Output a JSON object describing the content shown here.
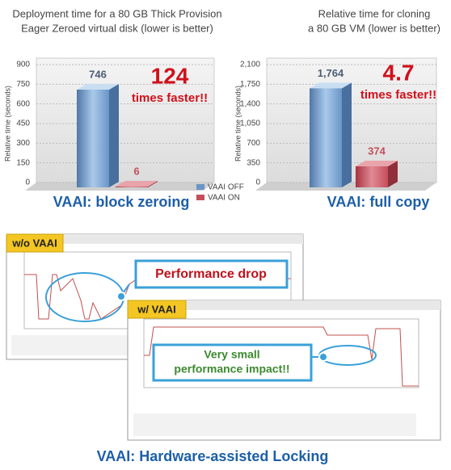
{
  "chart_data": [
    {
      "type": "bar",
      "title": [
        "Deployment time for a 80 GB Thick Provision",
        "Eager Zeroed virtual disk (lower is better)"
      ],
      "ylabel": "Relative time (seconds)",
      "values": [
        746,
        6
      ],
      "ylim": [
        0,
        900
      ],
      "yticks": [
        0,
        150,
        300,
        450,
        600,
        750,
        900
      ],
      "annotation": [
        "124",
        "times faster!!"
      ],
      "caption": "VAAI: block zeroing"
    },
    {
      "type": "bar",
      "title": [
        "Relative time for cloning",
        "a 80 GB VM (lower is better)"
      ],
      "ylabel": "Relative time (seconds)",
      "values": [
        1764,
        374
      ],
      "value_labels": [
        "1,764",
        "374"
      ],
      "ylim": [
        0,
        2100
      ],
      "yticks": [
        0,
        350,
        700,
        {
          "value": 1050,
          "label": "1,050"
        },
        {
          "value": 1400,
          "label": "1,400"
        },
        {
          "value": 1750,
          "label": "1,750"
        },
        {
          "value": 2100,
          "label": "2,100"
        }
      ],
      "annotation": [
        "4.7",
        "times faster!!"
      ],
      "caption": "VAAI: full copy"
    }
  ],
  "legend": {
    "names": [
      "VAAI OFF",
      "VAAI ON"
    ],
    "colors": [
      "#6a95c6",
      "#c44e5a"
    ]
  },
  "locking": {
    "before": "w/o VAAI",
    "after": "w/ VAAI",
    "drop": "Performance drop",
    "impact": [
      "Very small",
      "performance impact!!"
    ],
    "caption": "VAAI: Hardware-assisted Locking"
  }
}
